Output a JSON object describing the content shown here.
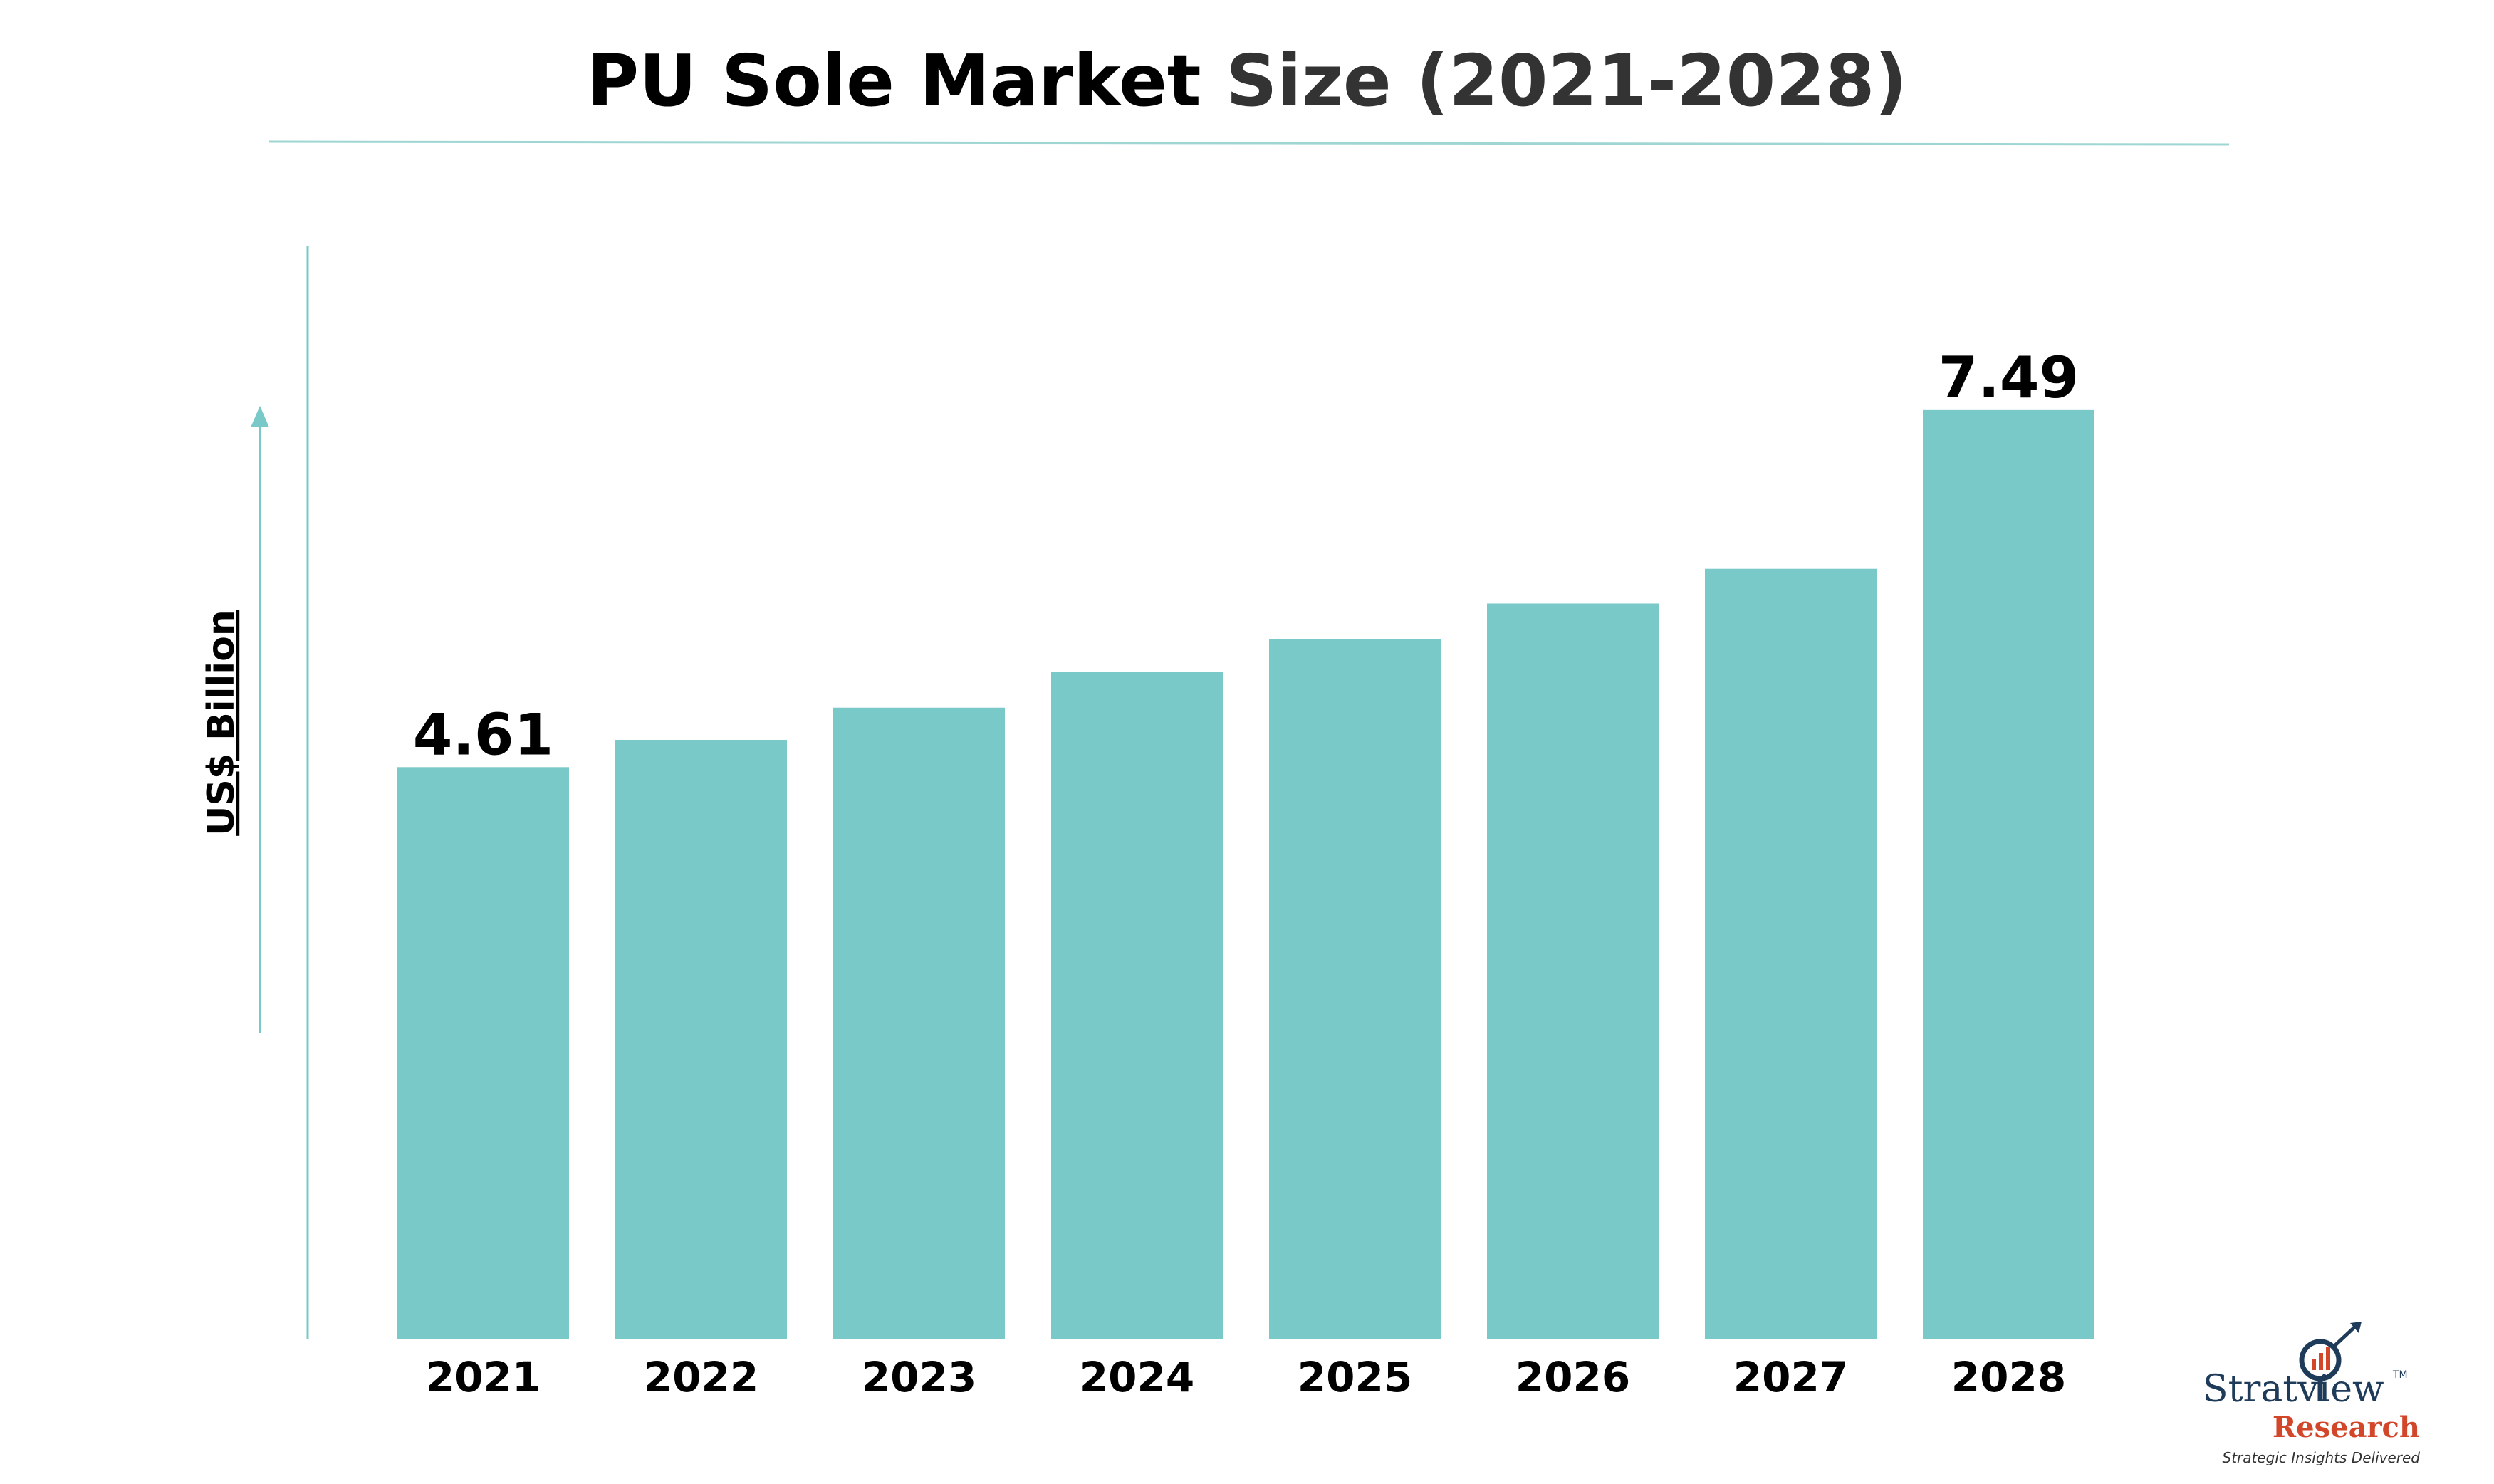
{
  "title": {
    "main": "PU Sole Market",
    "accent": "Size (2021-2028)"
  },
  "colors": {
    "bar": "#78c9c7",
    "axis": "#78c9c7",
    "divider": "#9fd6d3",
    "text": "#000000",
    "logo_navy": "#1f3b5a",
    "logo_red": "#d2462a"
  },
  "logo": {
    "name": "Stratview",
    "tm": "TM",
    "sub": "Research",
    "tagline": "Strategic Insights Delivered",
    "icon": "magnifier-chart-icon"
  },
  "chart_data": {
    "type": "bar",
    "ylabel": "US$ Billion",
    "xlabel": "",
    "categories": [
      "2021",
      "2022",
      "2023",
      "2024",
      "2025",
      "2026",
      "2027",
      "2028"
    ],
    "values": [
      4.61,
      4.83,
      5.09,
      5.38,
      5.64,
      5.93,
      6.21,
      7.49
    ],
    "data_labels": [
      "4.61",
      "",
      "",
      "",
      "",
      "",
      "",
      "7.49"
    ],
    "ylim": [
      0,
      8.5
    ],
    "grid": false,
    "legend": "none"
  }
}
